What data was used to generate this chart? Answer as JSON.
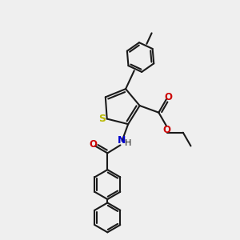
{
  "bg_color": "#efefef",
  "bond_color": "#1a1a1a",
  "S_color": "#b8b800",
  "N_color": "#0000cc",
  "O_color": "#cc0000",
  "lw": 1.5,
  "xlim": [
    0,
    10
  ],
  "ylim": [
    0,
    10
  ]
}
